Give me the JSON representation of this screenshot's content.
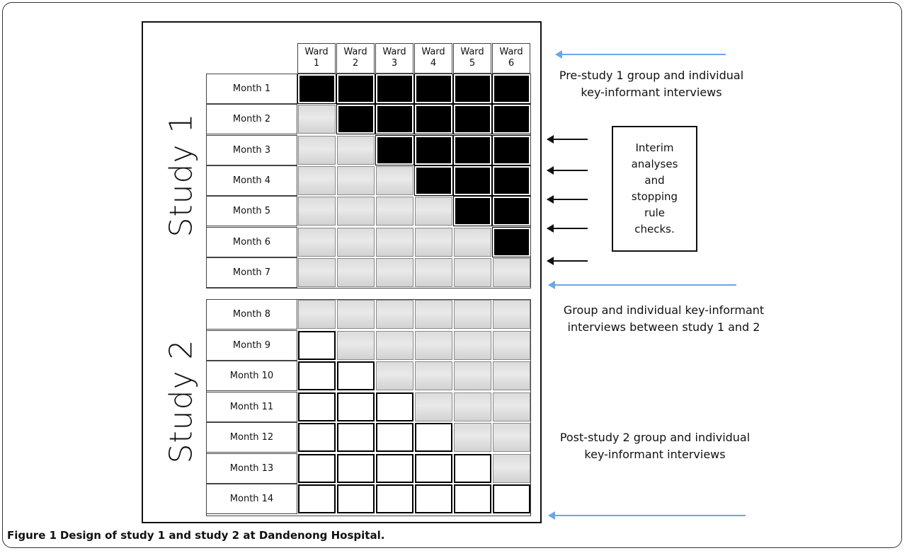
{
  "wards": [
    {
      "line1": "Ward",
      "line2": "1"
    },
    {
      "line1": "Ward",
      "line2": "2"
    },
    {
      "line1": "Ward",
      "line2": "3"
    },
    {
      "line1": "Ward",
      "line2": "4"
    },
    {
      "line1": "Ward",
      "line2": "5"
    },
    {
      "line1": "Ward",
      "line2": "6"
    }
  ],
  "study1": {
    "label": "Study 1",
    "months": [
      "Month 1",
      "Month 2",
      "Month 3",
      "Month 4",
      "Month 5",
      "Month 6",
      "Month 7"
    ]
  },
  "study2": {
    "label": "Study 2",
    "months": [
      "Month 8",
      "Month 9",
      "Month 10",
      "Month 11",
      "Month 12",
      "Month 13",
      "Month 14"
    ]
  },
  "notes": {
    "pre_study": [
      "Pre-study 1 group and individual",
      "key-informant interviews"
    ],
    "between": [
      "Group and individual key-informant",
      "interviews between study 1 and 2"
    ],
    "post_study": [
      "Post-study 2 group and individual",
      "key-informant interviews"
    ],
    "interim": [
      "Interim",
      "analyses",
      "and",
      "stopping",
      "rule",
      "checks."
    ]
  },
  "colors": {
    "blue_arrow": "#6aa7e8",
    "black_arrow": "#111111",
    "black_cell": "#000000",
    "grey_cell": "#dcdcdc",
    "white_cell": "#ffffff"
  },
  "caption": {
    "label": "Figure 1",
    "text": "Design of study 1 and study 2 at Dandenong Hospital."
  }
}
